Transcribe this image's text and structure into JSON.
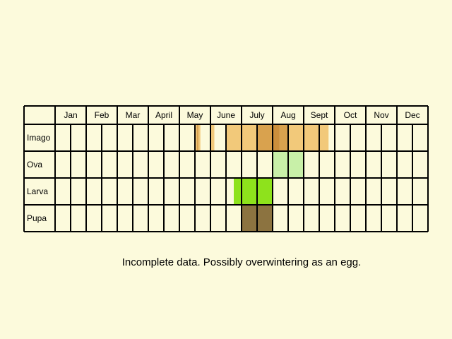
{
  "chart_data": {
    "type": "table",
    "months": [
      "Jan",
      "Feb",
      "Mar",
      "April",
      "May",
      "June",
      "July",
      "Aug",
      "Sept",
      "Oct",
      "Nov",
      "Dec"
    ],
    "stages": [
      {
        "key": "imago",
        "label": "Imago",
        "color": "#f2c97a",
        "spans": [
          {
            "from": 9.0,
            "to": 9.12,
            "color": "#f2c97a"
          },
          {
            "from": 9.12,
            "to": 9.24,
            "color": "#d9a24e"
          },
          {
            "from": 9.24,
            "to": 9.35,
            "color": "#f2c97a"
          },
          {
            "from": 10.0,
            "to": 10.25,
            "color": "#f2c97a"
          },
          {
            "from": 11.0,
            "to": 13.0,
            "color": "#f2c97a"
          },
          {
            "from": 13.0,
            "to": 14.0,
            "color": "#d9a24e"
          },
          {
            "from": 14.0,
            "to": 14.45,
            "color": "#cc8f3c"
          },
          {
            "from": 14.45,
            "to": 15.0,
            "color": "#d9a24e"
          },
          {
            "from": 15.0,
            "to": 17.0,
            "color": "#f2c97a"
          },
          {
            "from": 17.0,
            "to": 17.6,
            "color": "#f2c97a"
          }
        ]
      },
      {
        "key": "ova",
        "label": "Ova",
        "color": "#c8f0a8",
        "spans": [
          {
            "from": 14.0,
            "to": 16.0,
            "color": "#c8f0a8"
          }
        ]
      },
      {
        "key": "larva",
        "label": "Larva",
        "color": "#8ee21c",
        "spans": [
          {
            "from": 11.5,
            "to": 14.0,
            "color": "#8ee21c"
          }
        ]
      },
      {
        "key": "pupa",
        "label": "Pupa",
        "color": "#8c7340",
        "spans": [
          {
            "from": 12.0,
            "to": 14.0,
            "color": "#8c7340"
          }
        ]
      }
    ]
  },
  "caption": "Incomplete data. Possibly overwintering as an egg."
}
